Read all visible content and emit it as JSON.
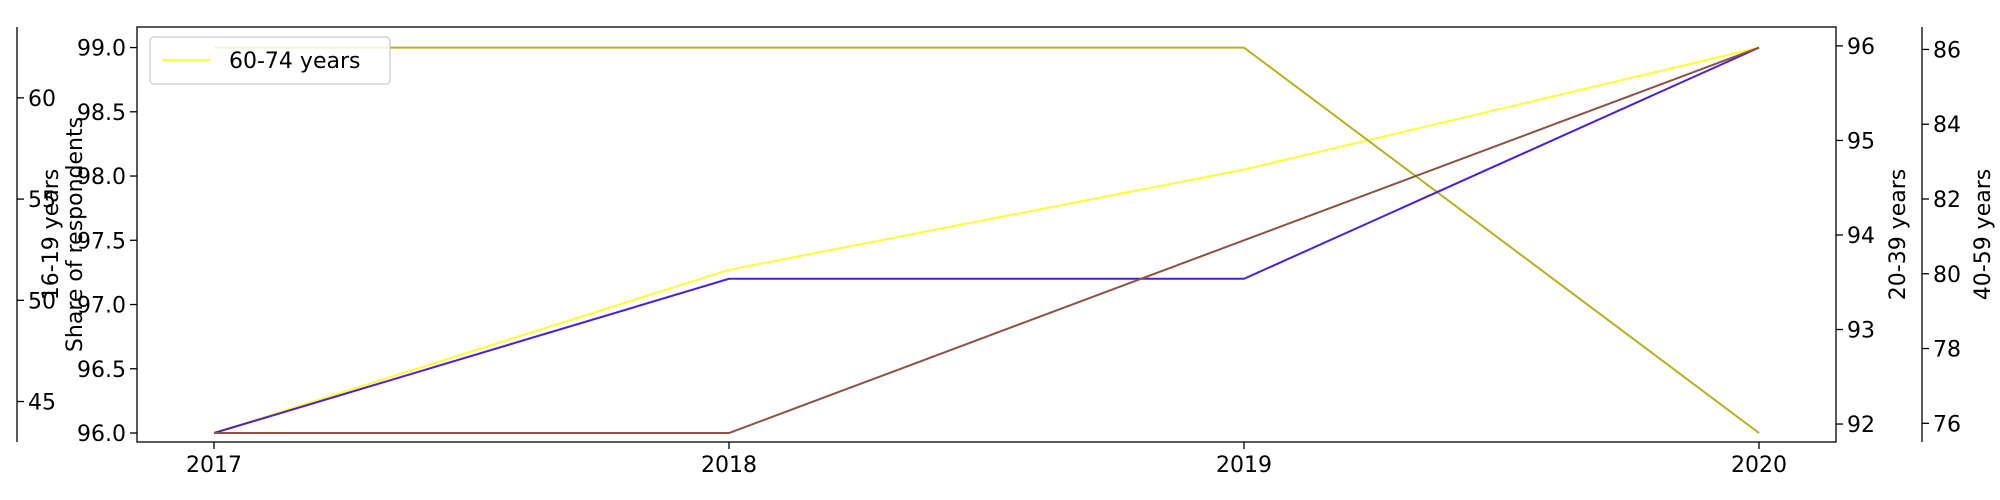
{
  "chart_data": {
    "type": "line",
    "x": [
      "2017",
      "2018",
      "2019",
      "2020"
    ],
    "legend": {
      "placement": "top-left",
      "entries": [
        "60-74 years"
      ]
    },
    "grid": false,
    "axes": {
      "left": {
        "label": "Share of respondents",
        "ticks": [
          "96.0",
          "96.5",
          "97.0",
          "97.5",
          "98.0",
          "98.5",
          "99.0"
        ],
        "range": [
          95.93,
          99.16
        ]
      },
      "left_outer": {
        "label": "16-19 years",
        "ticks": [
          "45",
          "50",
          "55",
          "60"
        ],
        "range": [
          43.0,
          63.5
        ]
      },
      "right_inner": {
        "label": "20-39 years",
        "ticks": [
          "92",
          "93",
          "94",
          "95",
          "96"
        ],
        "range": [
          91.81,
          96.2
        ]
      },
      "right_outer": {
        "label": "40-59 years",
        "ticks": [
          "76",
          "78",
          "80",
          "82",
          "84",
          "86"
        ],
        "range": [
          75.5,
          86.6
        ]
      }
    },
    "series": [
      {
        "name": "60-74 years",
        "axis": "left",
        "color": "#ffff33",
        "values": [
          96.0,
          97.27,
          98.05,
          99.0
        ]
      },
      {
        "axis": "left",
        "color": "#b5b21e",
        "values": [
          99.0,
          99.0,
          99.0,
          96.0
        ]
      },
      {
        "axis": "left",
        "color": "#4b1fd8",
        "values": [
          96.0,
          97.2,
          97.2,
          99.0
        ]
      },
      {
        "axis": "left",
        "color": "#8c5244",
        "values": [
          96.0,
          96.0,
          97.5,
          99.0
        ]
      }
    ]
  }
}
